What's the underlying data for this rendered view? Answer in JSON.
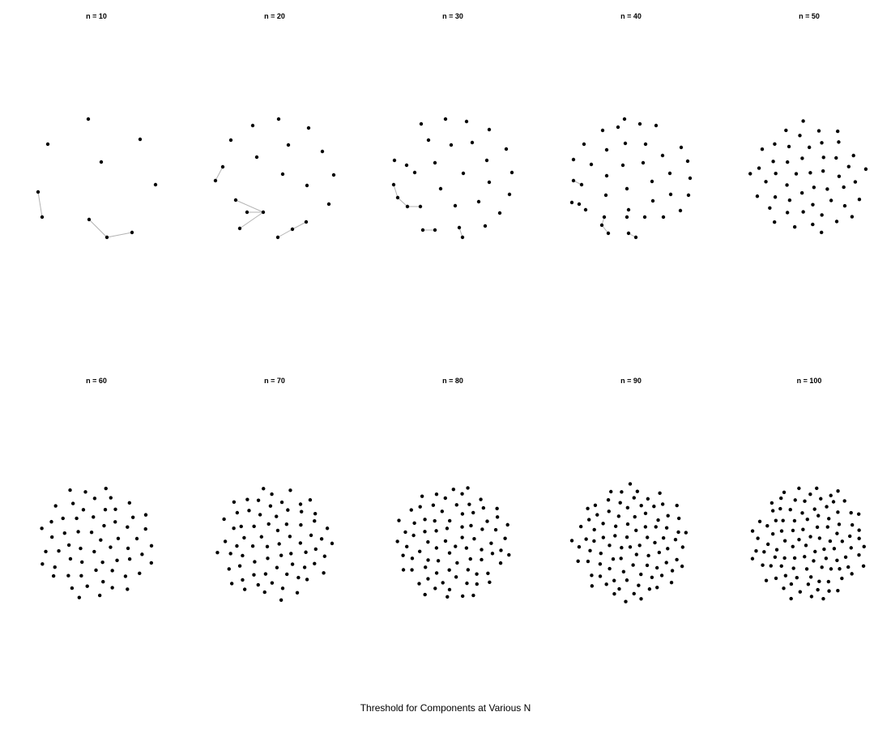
{
  "caption": "Threshold for Components at Various N",
  "panels": [
    {
      "title": "n = 10",
      "n": 10,
      "edge_count": 3
    },
    {
      "title": "n = 20",
      "n": 20,
      "edge_count": 6
    },
    {
      "title": "n = 30",
      "n": 30,
      "edge_count": 5
    },
    {
      "title": "n = 40",
      "n": 40,
      "edge_count": 4
    },
    {
      "title": "n = 50",
      "n": 50,
      "edge_count": 0
    },
    {
      "title": "n = 60",
      "n": 60,
      "edge_count": 0
    },
    {
      "title": "n = 70",
      "n": 70,
      "edge_count": 0
    },
    {
      "title": "n = 80",
      "n": 80,
      "edge_count": 0
    },
    {
      "title": "n = 90",
      "n": 90,
      "edge_count": 0
    },
    {
      "title": "n = 100",
      "n": 100,
      "edge_count": 0
    }
  ],
  "colors": {
    "node": "#000000",
    "edge": "#b3b3b3",
    "background": "#ffffff"
  }
}
